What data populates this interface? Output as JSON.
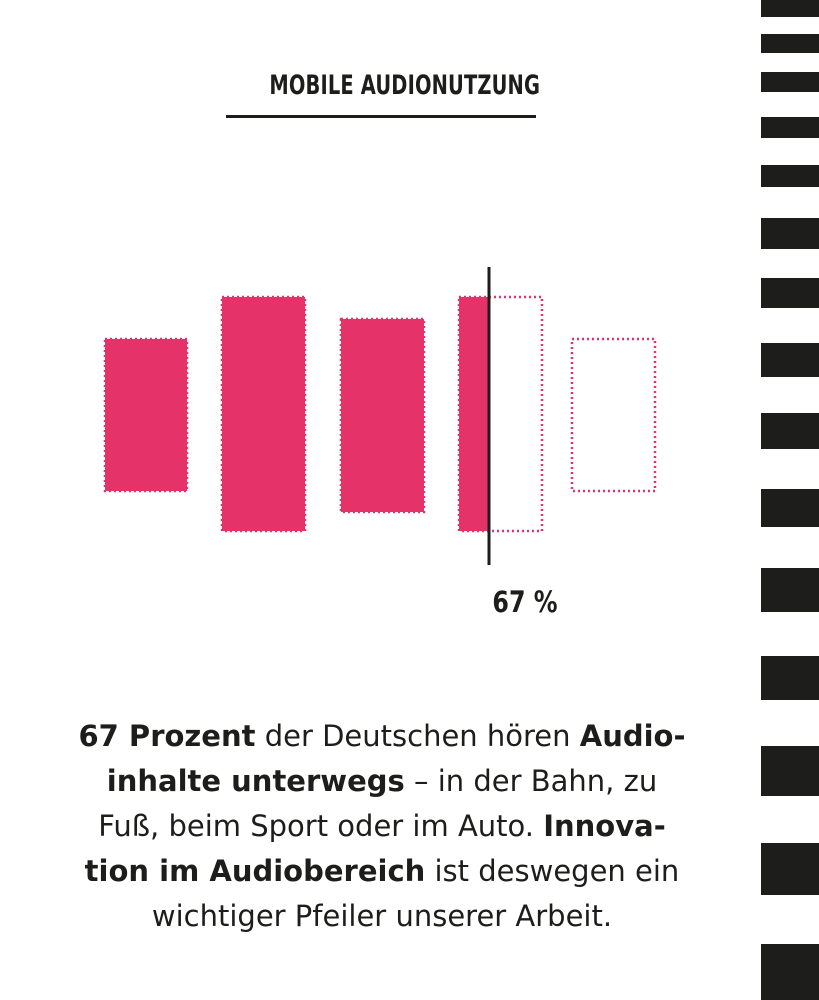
{
  "title": "MOBILE AUDIONUTZUNG",
  "chart_data": {
    "type": "bar",
    "title": "MOBILE AUDIONUTZUNG",
    "marker": {
      "value": 67,
      "label": "67 %"
    },
    "colors": {
      "fill": "#e5336a",
      "outline": "#e5336a",
      "marker": "#1d1d1b"
    }
  },
  "caption": {
    "lines": [
      [
        {
          "text": "67 Prozent",
          "bold": true
        },
        {
          "text": " der Deutschen hören ",
          "bold": false
        },
        {
          "text": "Audio-",
          "bold": true
        }
      ],
      [
        {
          "text": "inhalte unterwegs",
          "bold": true
        },
        {
          "text": " – in der Bahn, zu",
          "bold": false
        }
      ],
      [
        {
          "text": "Fuß, beim Sport oder im Auto. ",
          "bold": false
        },
        {
          "text": "Innova-",
          "bold": true
        }
      ],
      [
        {
          "text": "tion im Audiobereich",
          "bold": true
        },
        {
          "text": " ist deswegen ein",
          "bold": false
        }
      ],
      [
        {
          "text": "wichtiger Pfeiler unserer Arbeit.",
          "bold": false
        }
      ]
    ]
  }
}
